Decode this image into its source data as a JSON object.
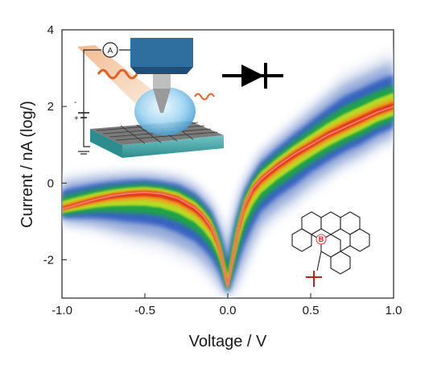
{
  "chart_data": {
    "type": "density-scatter",
    "xlabel": "Voltage / V",
    "ylabel": "Current / nA (log/)",
    "xlim": [
      -1.0,
      1.0
    ],
    "ylim": [
      -3,
      4
    ],
    "xticks": [
      {
        "v": -1.0,
        "label": "-1.0"
      },
      {
        "v": -0.5,
        "label": "-0.5"
      },
      {
        "v": 0.0,
        "label": "0.0"
      },
      {
        "v": 0.5,
        "label": "0.5"
      },
      {
        "v": 1.0,
        "label": "1.0"
      }
    ],
    "yticks": [
      {
        "v": -2,
        "label": "-2"
      },
      {
        "v": 0,
        "label": "0"
      },
      {
        "v": 2,
        "label": "2"
      },
      {
        "v": 4,
        "label": "4"
      }
    ],
    "colormap": [
      "#e8ecf6",
      "#8aa2d6",
      "#2f5cc0",
      "#1faa3a",
      "#c8e020",
      "#f0a020",
      "#e02a12"
    ],
    "series": [
      {
        "x": [
          -1.0,
          -0.9,
          -0.8,
          -0.7,
          -0.6,
          -0.5,
          -0.4,
          -0.3,
          -0.2,
          -0.15,
          -0.1,
          -0.07,
          -0.04,
          -0.02,
          0.0,
          0.02,
          0.04,
          0.07,
          0.1,
          0.15,
          0.2,
          0.3,
          0.4,
          0.5,
          0.6,
          0.7,
          0.8,
          0.9,
          1.0
        ],
        "y": [
          -0.68,
          -0.55,
          -0.43,
          -0.33,
          -0.27,
          -0.24,
          -0.28,
          -0.4,
          -0.65,
          -0.85,
          -1.15,
          -1.45,
          -1.85,
          -2.35,
          -2.7,
          -2.2,
          -1.7,
          -1.1,
          -0.6,
          -0.15,
          0.1,
          0.45,
          0.75,
          1.0,
          1.25,
          1.45,
          1.65,
          1.85,
          2.0
        ],
        "color": "#f07a70"
      }
    ],
    "density_band": {
      "x": [
        -1.0,
        -0.8,
        -0.6,
        -0.5,
        -0.4,
        -0.3,
        -0.2,
        -0.1,
        -0.04,
        0.0,
        0.04,
        0.1,
        0.2,
        0.3,
        0.4,
        0.5,
        0.6,
        0.7,
        0.8,
        0.9,
        1.0
      ],
      "low": [
        -1.1,
        -1.3,
        -1.6,
        -1.7,
        -1.8,
        -2.0,
        -2.2,
        -2.6,
        -2.9,
        -3.0,
        -2.9,
        -2.4,
        -1.4,
        -1.0,
        -0.7,
        -0.3,
        0.0,
        0.3,
        0.5,
        0.8,
        1.0
      ],
      "high": [
        0.2,
        0.3,
        0.35,
        0.35,
        0.3,
        0.25,
        0.05,
        -0.4,
        -1.0,
        -1.5,
        -0.6,
        0.1,
        0.9,
        1.3,
        1.7,
        2.1,
        2.5,
        2.9,
        3.1,
        3.3,
        3.5
      ]
    },
    "annotations": {
      "ammeter_symbol": "A",
      "plus_sign": "+",
      "minus_sign": "-",
      "boron_label": "B"
    }
  }
}
